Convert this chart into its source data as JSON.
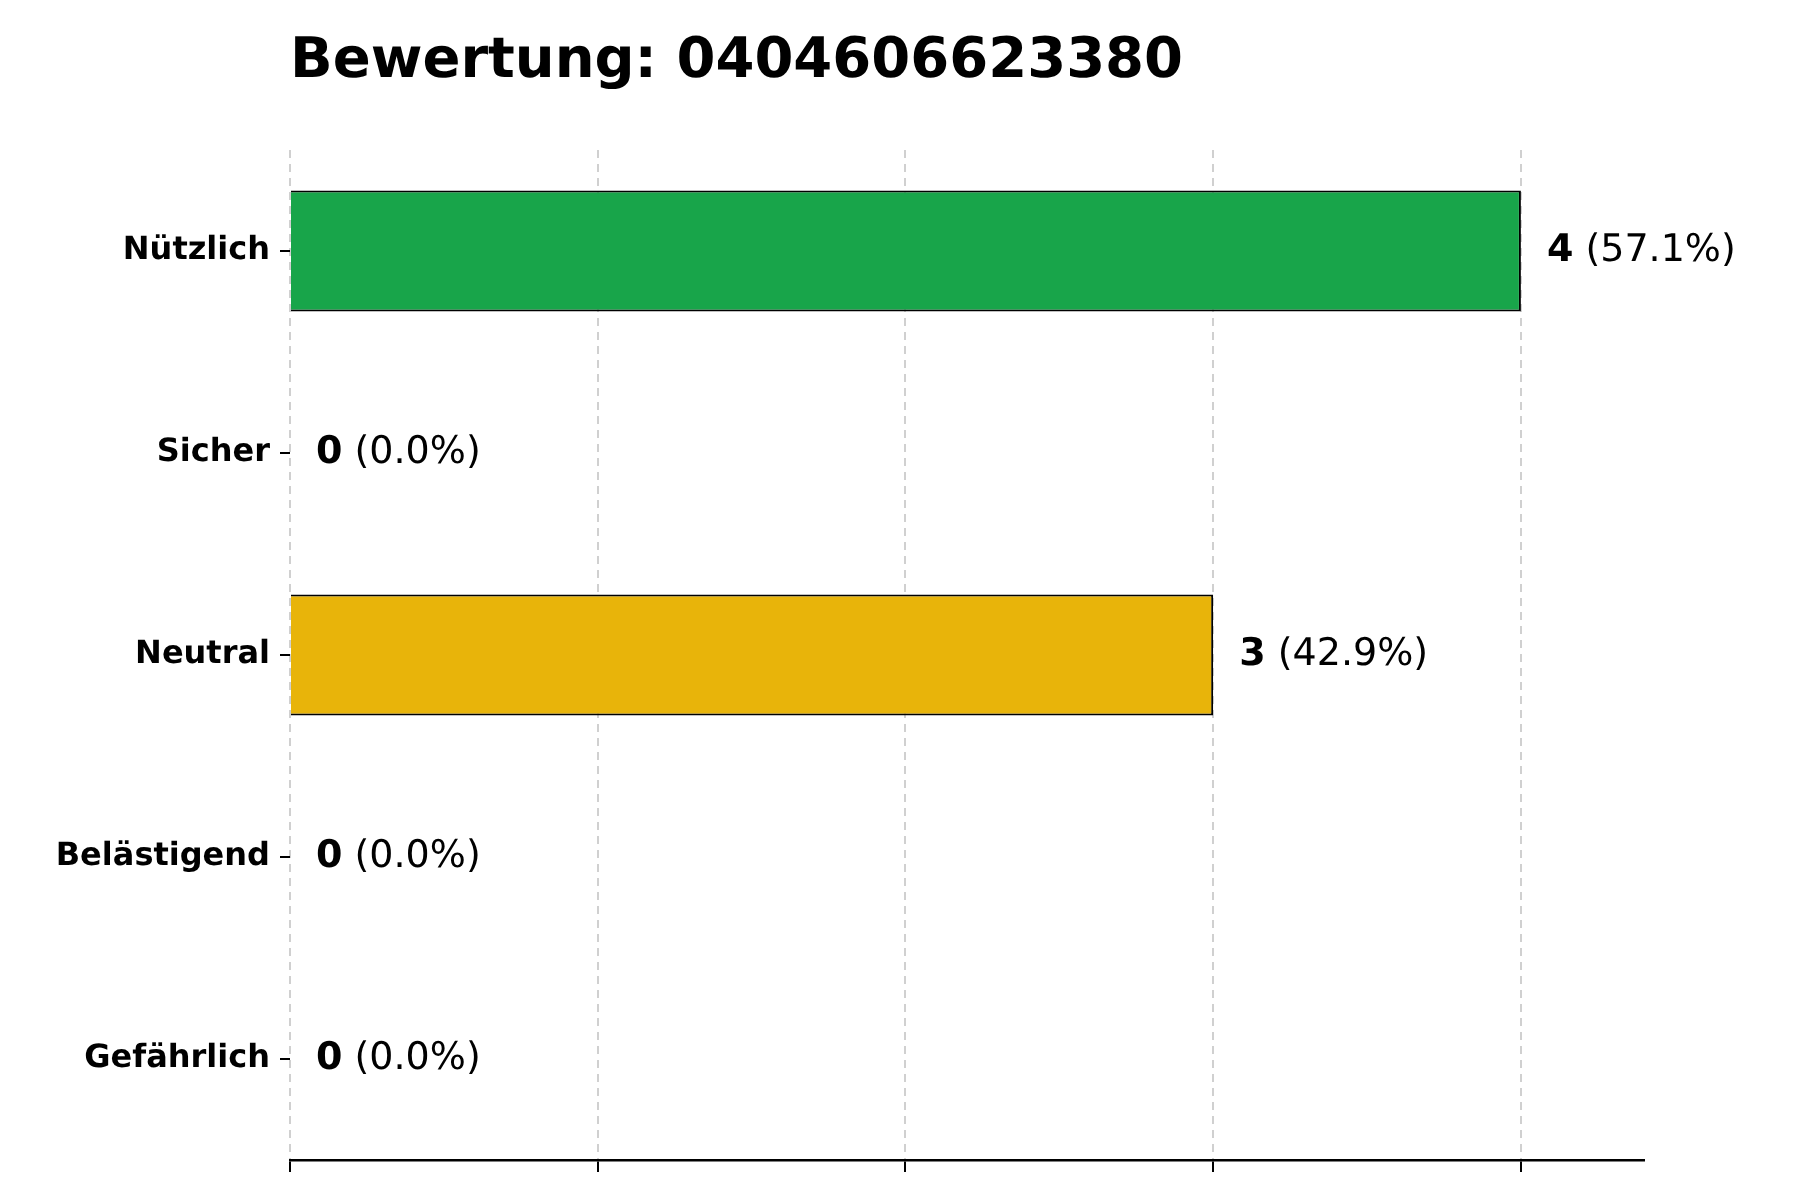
{
  "chart_data": {
    "type": "bar",
    "orientation": "horizontal",
    "title": "Bewertung: 0404606623380",
    "categories": [
      "Nützlich",
      "Sicher",
      "Neutral",
      "Belästigend",
      "Gefährlich"
    ],
    "values": [
      4,
      0,
      3,
      0,
      0
    ],
    "colors": [
      "#18a54a",
      null,
      "#e8b40a",
      null,
      null
    ],
    "value_labels": [
      "4 (57.1%)",
      "0 (0.0%)",
      "3 (42.9%)",
      "0 (0.0%)",
      "0 (0.0%)"
    ],
    "xlim": [
      0,
      4.4
    ],
    "xticks": [
      {
        "value": 0,
        "label": null
      },
      {
        "value": 1,
        "label": null
      },
      {
        "value": 2,
        "label": null
      },
      {
        "value": 3,
        "label": null
      },
      {
        "value": 4,
        "label": null
      }
    ],
    "grid": "x",
    "tick_labels": "y",
    "legend": false
  }
}
